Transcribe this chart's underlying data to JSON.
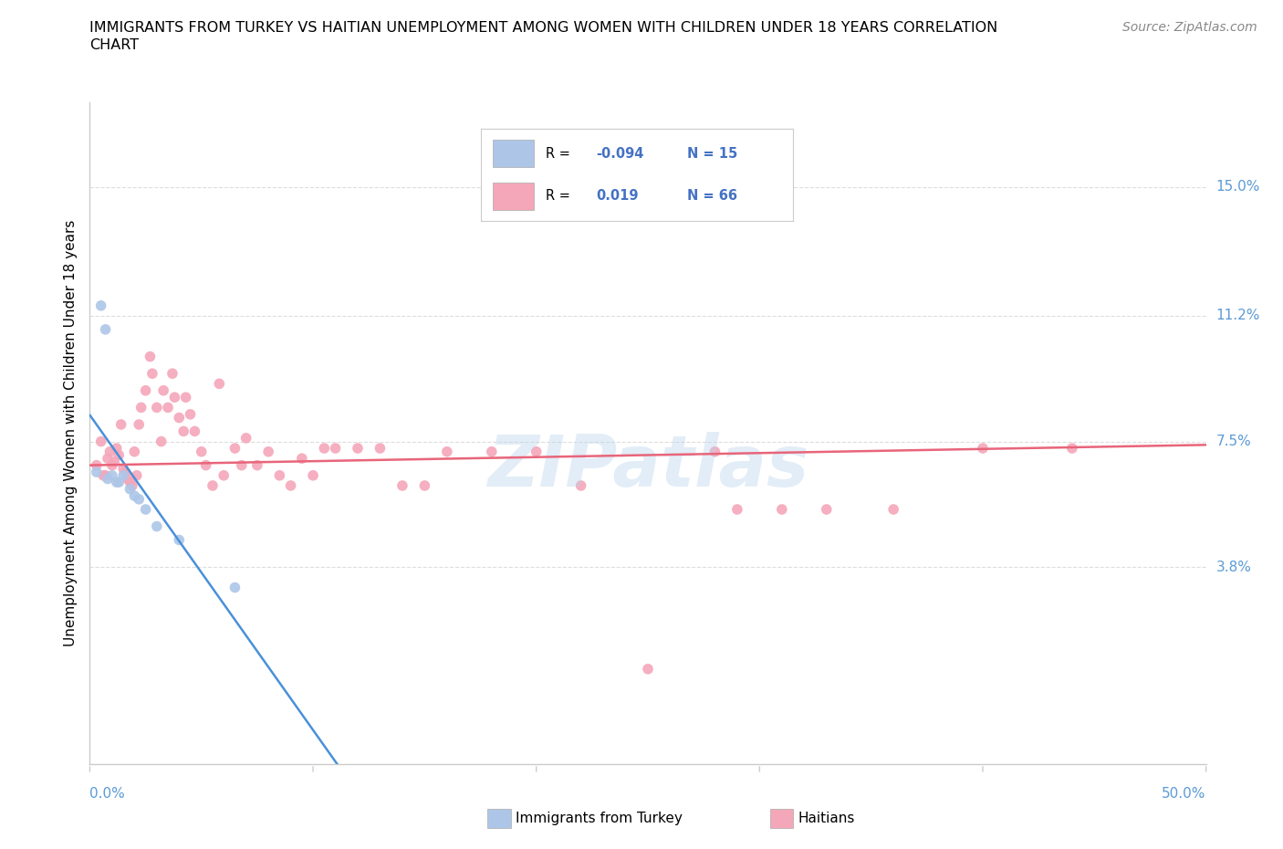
{
  "title_line1": "IMMIGRANTS FROM TURKEY VS HAITIAN UNEMPLOYMENT AMONG WOMEN WITH CHILDREN UNDER 18 YEARS CORRELATION",
  "title_line2": "CHART",
  "source": "Source: ZipAtlas.com",
  "ylabel": "Unemployment Among Women with Children Under 18 years",
  "yticks_labels": [
    "15.0%",
    "11.2%",
    "7.5%",
    "3.8%"
  ],
  "ytick_vals": [
    0.15,
    0.112,
    0.075,
    0.038
  ],
  "xlim": [
    0.0,
    0.5
  ],
  "ylim": [
    -0.02,
    0.175
  ],
  "legend_turkey_R": "-0.094",
  "legend_turkey_N": "15",
  "legend_haitian_R": "0.019",
  "legend_haitian_N": "66",
  "turkey_color": "#adc6e8",
  "haitian_color": "#f4a7b9",
  "turkey_line_color": "#4a90d9",
  "haitian_line_color": "#e8657a",
  "haitian_dash_color": "#9ec4e8",
  "watermark": "ZIPatlas",
  "turkey_x": [
    0.003,
    0.005,
    0.007,
    0.008,
    0.01,
    0.012,
    0.013,
    0.015,
    0.018,
    0.02,
    0.022,
    0.025,
    0.03,
    0.04,
    0.065
  ],
  "turkey_y": [
    0.066,
    0.115,
    0.108,
    0.064,
    0.065,
    0.063,
    0.063,
    0.065,
    0.061,
    0.059,
    0.058,
    0.055,
    0.05,
    0.046,
    0.032
  ],
  "haitian_x": [
    0.003,
    0.005,
    0.006,
    0.007,
    0.008,
    0.009,
    0.01,
    0.011,
    0.012,
    0.013,
    0.014,
    0.015,
    0.016,
    0.017,
    0.018,
    0.019,
    0.02,
    0.021,
    0.022,
    0.023,
    0.025,
    0.027,
    0.028,
    0.03,
    0.032,
    0.033,
    0.035,
    0.037,
    0.038,
    0.04,
    0.042,
    0.043,
    0.045,
    0.047,
    0.05,
    0.052,
    0.055,
    0.058,
    0.06,
    0.065,
    0.068,
    0.07,
    0.075,
    0.08,
    0.085,
    0.09,
    0.095,
    0.1,
    0.105,
    0.11,
    0.12,
    0.13,
    0.14,
    0.15,
    0.16,
    0.18,
    0.2,
    0.22,
    0.25,
    0.28,
    0.29,
    0.31,
    0.33,
    0.36,
    0.4,
    0.44
  ],
  "haitian_y": [
    0.068,
    0.075,
    0.065,
    0.065,
    0.07,
    0.072,
    0.068,
    0.069,
    0.073,
    0.071,
    0.08,
    0.067,
    0.066,
    0.064,
    0.063,
    0.062,
    0.072,
    0.065,
    0.08,
    0.085,
    0.09,
    0.1,
    0.095,
    0.085,
    0.075,
    0.09,
    0.085,
    0.095,
    0.088,
    0.082,
    0.078,
    0.088,
    0.083,
    0.078,
    0.072,
    0.068,
    0.062,
    0.092,
    0.065,
    0.073,
    0.068,
    0.076,
    0.068,
    0.072,
    0.065,
    0.062,
    0.07,
    0.065,
    0.073,
    0.073,
    0.073,
    0.073,
    0.062,
    0.062,
    0.072,
    0.072,
    0.072,
    0.062,
    0.008,
    0.072,
    0.055,
    0.055,
    0.055,
    0.055,
    0.073,
    0.073
  ],
  "grid_color": "#dddddd",
  "spine_color": "#cccccc"
}
